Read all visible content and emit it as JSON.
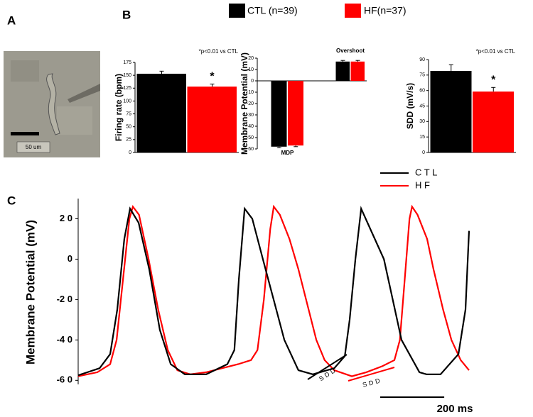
{
  "panel_labels": [
    "A",
    "B",
    "C"
  ],
  "legend": [
    {
      "name": "CTL (n=39)",
      "color": "#000000"
    },
    {
      "name": "HF(n=37)",
      "color": "#ff0000"
    }
  ],
  "image": {
    "scale_label": "50 um"
  },
  "chart_data": [
    {
      "type": "bar",
      "ylabel": "Firing rate (bpm)",
      "annotation": "*p<0.01 vs CTL",
      "star": "*",
      "categories": [
        null
      ],
      "ylim": [
        0,
        175
      ],
      "yticks": [
        0,
        25,
        50,
        75,
        100,
        125,
        150,
        175
      ],
      "series": [
        {
          "color": "#000000",
          "values": [
            153
          ],
          "errors": [
            5
          ]
        },
        {
          "color": "#ff0000",
          "values": [
            128
          ],
          "errors": [
            5
          ]
        }
      ]
    },
    {
      "type": "bar",
      "ylabel": "Membrane Potential (mV)",
      "categories": [
        "MDP",
        "Overshoot"
      ],
      "ylim": [
        -60,
        20
      ],
      "yticks": [
        -60,
        -50,
        -40,
        -30,
        -20,
        -10,
        0,
        10,
        20
      ],
      "series": [
        {
          "color": "#000000",
          "values": [
            -58,
            17
          ],
          "errors": [
            1,
            1
          ]
        },
        {
          "color": "#ff0000",
          "values": [
            -57,
            17
          ],
          "errors": [
            1,
            1
          ]
        }
      ]
    },
    {
      "type": "bar",
      "ylabel": "SDD (mV/s)",
      "annotation": "*p<0.01 vs CTL",
      "star": "*",
      "categories": [
        null
      ],
      "ylim": [
        0,
        90
      ],
      "yticks": [
        0,
        15,
        30,
        45,
        60,
        75,
        90
      ],
      "series": [
        {
          "color": "#000000",
          "values": [
            79
          ],
          "errors": [
            6
          ]
        },
        {
          "color": "#ff0000",
          "values": [
            59
          ],
          "errors": [
            4
          ]
        }
      ]
    },
    {
      "type": "line",
      "ylabel": "Membrane Potential (mV)",
      "xlim": [
        0,
        1221
      ],
      "ylim": [
        -62,
        30
      ],
      "yticks": [
        {
          "value": 20,
          "label": "2 0"
        },
        0,
        {
          "value": -20,
          "label": "-2 0"
        },
        {
          "value": -40,
          "label": "-4 0"
        },
        {
          "value": -60,
          "label": "-6 0"
        }
      ],
      "scale_bar": {
        "length": 200,
        "label": "200 ms"
      },
      "sdd_labels": [
        "SDD",
        "SDD"
      ],
      "series": [
        {
          "name": "C T L",
          "color": "#000000",
          "x": [
            0,
            67,
            100,
            122,
            144,
            162,
            189,
            222,
            255,
            289,
            333,
            400,
            466,
            488,
            502,
            520,
            544,
            577,
            644,
            688,
            733,
            800,
            833,
            848,
            866,
            884,
            955,
            1010,
            1066,
            1088,
            1132,
            1188,
            1210,
            1221
          ],
          "values": [
            -57.5,
            -54,
            -47,
            -25,
            10,
            25,
            18,
            -5,
            -35,
            -52,
            -57,
            -57,
            -52,
            -45,
            -10,
            25,
            20,
            0,
            -40,
            -55,
            -57,
            -54,
            -48,
            -30,
            0,
            25,
            0,
            -40,
            -56,
            -57,
            -57,
            -47,
            -25,
            14
          ]
        },
        {
          "name": "H F",
          "color": "#ff0000",
          "x": [
            0,
            60,
            100,
            120,
            140,
            160,
            171,
            190,
            220,
            250,
            280,
            310,
            350,
            400,
            450,
            500,
            540,
            560,
            580,
            600,
            611,
            630,
            660,
            688,
            720,
            744,
            770,
            800,
            855,
            900,
            950,
            988,
            1005,
            1020,
            1035,
            1043,
            1060,
            1090,
            1110,
            1140,
            1166,
            1195,
            1221
          ],
          "values": [
            -58,
            -56,
            -52,
            -40,
            -10,
            20,
            26,
            22,
            0,
            -25,
            -45,
            -55,
            -57,
            -56,
            -54,
            -52,
            -50,
            -45,
            -20,
            15,
            26,
            22,
            10,
            -5,
            -25,
            -40,
            -50,
            -55,
            -58,
            -56,
            -53,
            -50,
            -40,
            -10,
            20,
            26,
            22,
            10,
            -5,
            -25,
            -40,
            -50,
            -55
          ]
        }
      ]
    }
  ]
}
